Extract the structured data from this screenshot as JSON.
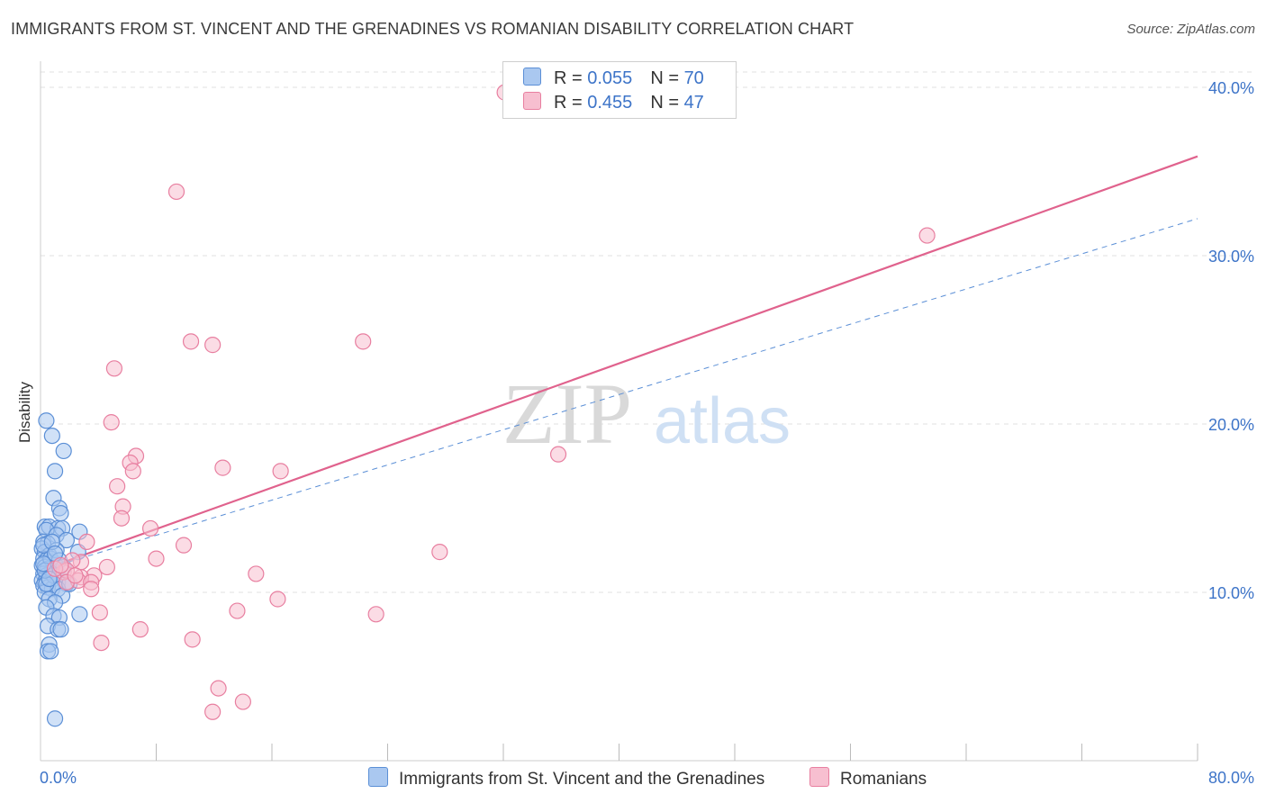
{
  "header": {
    "title": "IMMIGRANTS FROM ST. VINCENT AND THE GRENADINES VS ROMANIAN DISABILITY CORRELATION CHART",
    "source": "Source: ZipAtlas.com"
  },
  "watermark": {
    "zip": "ZIP",
    "atlas": "atlas"
  },
  "legend": {
    "rows": [
      {
        "r_label": "R = ",
        "r_value": "0.055",
        "n_label": "N = ",
        "n_value": "70"
      },
      {
        "r_label": "R = ",
        "r_value": "0.455",
        "n_label": "N = ",
        "n_value": "47"
      }
    ]
  },
  "colors": {
    "blue_fill": "#aac8f0",
    "blue_stroke": "#5b8fd6",
    "blue_line": "#5b8fd6",
    "pink_fill": "#f7bfd0",
    "pink_stroke": "#e87fa0",
    "pink_line": "#e0628d",
    "axis_label": "#3d74c8"
  },
  "chart_data": {
    "type": "scatter",
    "title": "IMMIGRANTS FROM ST. VINCENT AND THE GRENADINES VS ROMANIAN DISABILITY CORRELATION CHART",
    "xlabel": "",
    "ylabel": "Disability",
    "xlim": [
      0,
      80
    ],
    "ylim": [
      0,
      42
    ],
    "x_tick_labels": [
      "0.0%",
      "80.0%"
    ],
    "y_ticks": [
      10,
      20,
      30,
      40
    ],
    "y_tick_labels": [
      "10.0%",
      "20.0%",
      "30.0%",
      "40.0%"
    ],
    "grid": "horizontal dashed",
    "legend_position": "top-center",
    "series": [
      {
        "name": "Immigrants from St. Vincent and the Grenadines",
        "color": "#5b8fd6",
        "trend": {
          "x": [
            0,
            80
          ],
          "y": [
            11.3,
            32.2
          ],
          "style": "dashed"
        },
        "points": [
          [
            0.4,
            20.2
          ],
          [
            0.8,
            19.3
          ],
          [
            1.6,
            18.4
          ],
          [
            1.0,
            17.2
          ],
          [
            0.9,
            15.6
          ],
          [
            1.3,
            15.0
          ],
          [
            1.4,
            14.7
          ],
          [
            0.3,
            13.9
          ],
          [
            0.6,
            13.9
          ],
          [
            1.2,
            13.8
          ],
          [
            1.5,
            13.8
          ],
          [
            2.7,
            13.6
          ],
          [
            0.4,
            13.7
          ],
          [
            1.1,
            13.4
          ],
          [
            0.2,
            13.0
          ],
          [
            0.5,
            12.9
          ],
          [
            1.8,
            13.1
          ],
          [
            0.1,
            12.6
          ],
          [
            0.3,
            12.4
          ],
          [
            0.6,
            12.2
          ],
          [
            2.6,
            12.4
          ],
          [
            0.2,
            12.0
          ],
          [
            0.4,
            11.9
          ],
          [
            0.7,
            11.8
          ],
          [
            1.0,
            11.7
          ],
          [
            0.1,
            11.6
          ],
          [
            0.3,
            11.5
          ],
          [
            0.5,
            11.4
          ],
          [
            0.8,
            11.3
          ],
          [
            1.1,
            11.2
          ],
          [
            0.2,
            11.1
          ],
          [
            0.4,
            11.0
          ],
          [
            0.6,
            10.9
          ],
          [
            0.9,
            10.8
          ],
          [
            0.1,
            10.7
          ],
          [
            0.3,
            10.6
          ],
          [
            1.2,
            10.6
          ],
          [
            1.8,
            10.5
          ],
          [
            0.2,
            10.4
          ],
          [
            0.5,
            10.3
          ],
          [
            0.8,
            10.2
          ],
          [
            1.2,
            10.2
          ],
          [
            0.3,
            10.0
          ],
          [
            1.5,
            9.8
          ],
          [
            0.6,
            9.6
          ],
          [
            1.0,
            9.4
          ],
          [
            0.4,
            9.1
          ],
          [
            2.0,
            10.5
          ],
          [
            2.7,
            8.7
          ],
          [
            0.9,
            8.6
          ],
          [
            1.3,
            8.5
          ],
          [
            0.5,
            8.0
          ],
          [
            1.2,
            7.8
          ],
          [
            1.4,
            7.8
          ],
          [
            0.6,
            6.9
          ],
          [
            0.5,
            6.5
          ],
          [
            0.7,
            6.5
          ],
          [
            1.0,
            2.5
          ],
          [
            0.2,
            12.8
          ],
          [
            0.7,
            12.0
          ],
          [
            1.6,
            11.5
          ],
          [
            0.9,
            11.0
          ],
          [
            0.4,
            10.5
          ],
          [
            1.1,
            12.5
          ],
          [
            0.3,
            11.3
          ],
          [
            1.3,
            11.9
          ],
          [
            0.6,
            10.8
          ],
          [
            0.8,
            13.0
          ],
          [
            0.2,
            11.7
          ],
          [
            1.0,
            12.3
          ]
        ]
      },
      {
        "name": "Romanians",
        "color": "#e87fa0",
        "trend": {
          "x": [
            0,
            80
          ],
          "y": [
            11.3,
            35.9
          ],
          "style": "solid"
        },
        "points": [
          [
            32.1,
            39.7
          ],
          [
            9.4,
            33.8
          ],
          [
            61.3,
            31.2
          ],
          [
            10.4,
            24.9
          ],
          [
            11.9,
            24.7
          ],
          [
            22.3,
            24.9
          ],
          [
            5.1,
            23.3
          ],
          [
            4.9,
            20.1
          ],
          [
            35.8,
            18.2
          ],
          [
            6.6,
            18.1
          ],
          [
            6.2,
            17.7
          ],
          [
            6.4,
            17.2
          ],
          [
            12.6,
            17.4
          ],
          [
            16.6,
            17.2
          ],
          [
            5.3,
            16.3
          ],
          [
            5.7,
            15.1
          ],
          [
            5.6,
            14.4
          ],
          [
            7.6,
            13.8
          ],
          [
            3.2,
            13.0
          ],
          [
            9.9,
            12.8
          ],
          [
            27.6,
            12.4
          ],
          [
            8.0,
            12.0
          ],
          [
            2.8,
            11.8
          ],
          [
            2.2,
            11.9
          ],
          [
            4.6,
            11.5
          ],
          [
            1.6,
            11.2
          ],
          [
            1.8,
            11.3
          ],
          [
            3.7,
            11.0
          ],
          [
            14.9,
            11.1
          ],
          [
            2.8,
            10.9
          ],
          [
            2.6,
            10.7
          ],
          [
            3.5,
            10.6
          ],
          [
            3.5,
            10.2
          ],
          [
            1.8,
            10.6
          ],
          [
            16.4,
            9.6
          ],
          [
            13.6,
            8.9
          ],
          [
            23.2,
            8.7
          ],
          [
            4.1,
            8.8
          ],
          [
            6.9,
            7.8
          ],
          [
            10.5,
            7.2
          ],
          [
            4.2,
            7.0
          ],
          [
            12.3,
            4.3
          ],
          [
            14.0,
            3.5
          ],
          [
            11.9,
            2.9
          ],
          [
            1.0,
            11.4
          ],
          [
            1.4,
            11.6
          ],
          [
            2.4,
            11.0
          ]
        ]
      }
    ]
  },
  "bottom_legend": {
    "items": [
      "Immigrants from St. Vincent and the Grenadines",
      "Romanians"
    ]
  }
}
